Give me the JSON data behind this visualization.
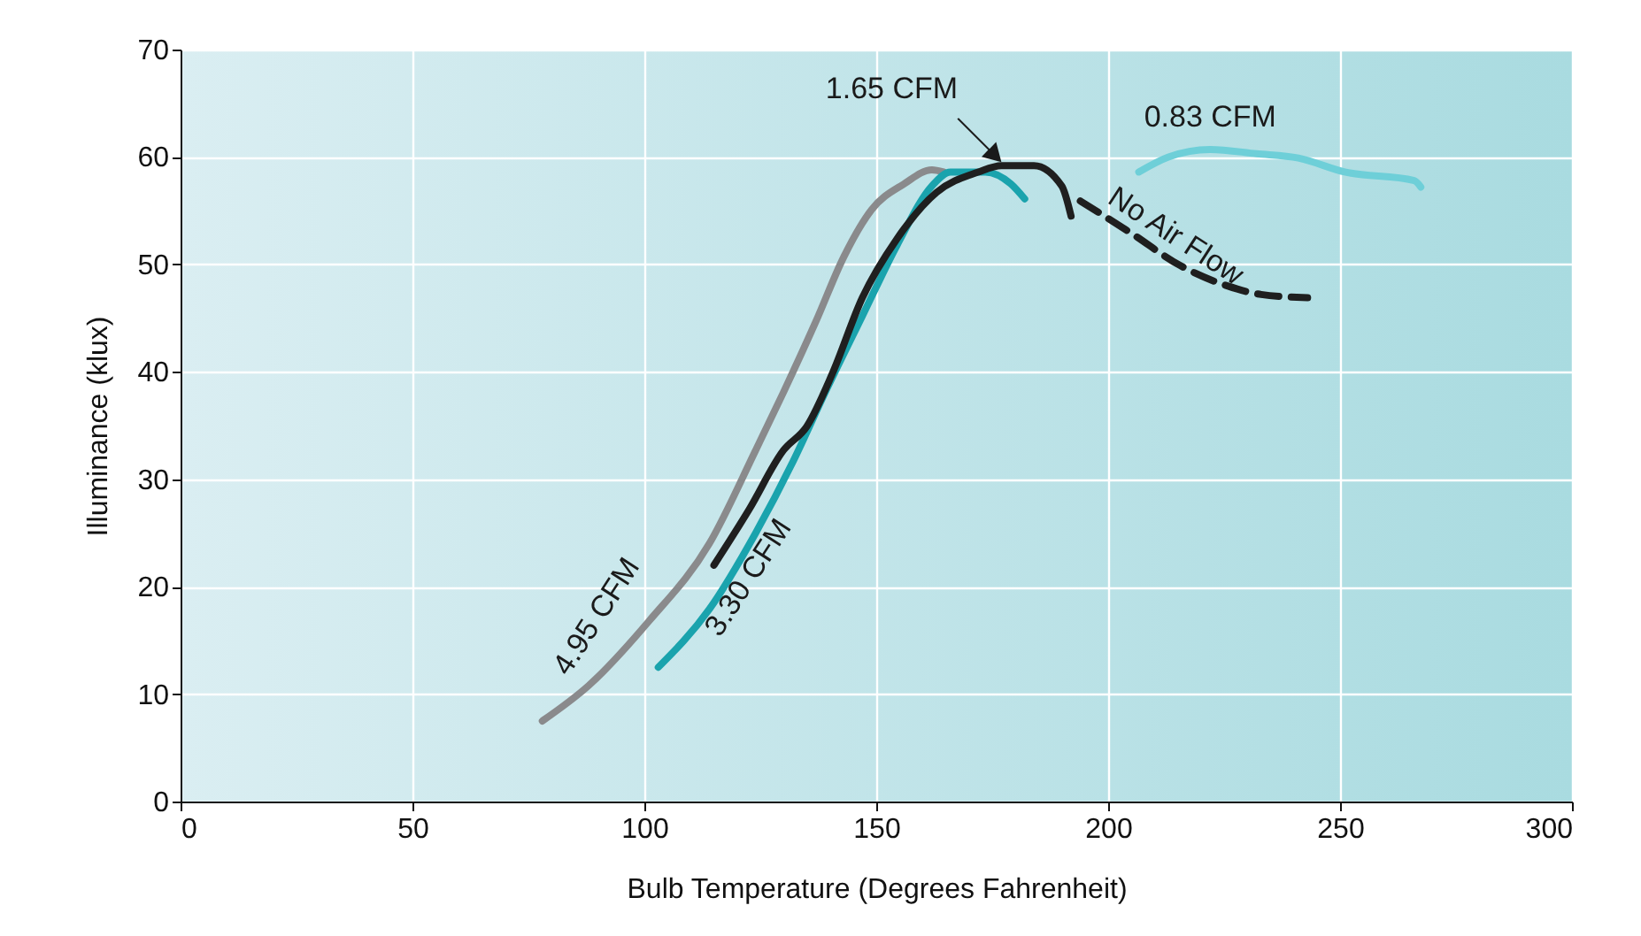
{
  "chart_data": {
    "type": "line",
    "xlabel": "Bulb Temperature (Degrees Fahrenheit)",
    "ylabel": "Illuminance (klux)",
    "xlim": [
      0,
      300
    ],
    "xticks": [
      0,
      50,
      100,
      150,
      200,
      250,
      300
    ],
    "ylim": [
      0,
      70
    ],
    "yticks": [
      0,
      10,
      20,
      30,
      40,
      50,
      60,
      70
    ],
    "grid": true,
    "marker": "none",
    "series": [
      {
        "name": "4.95 CFM",
        "color": "#8a8a8c",
        "line_style": "solid",
        "x": [
          78,
          88,
          101,
          114,
          124,
          130,
          137,
          143,
          149,
          156,
          162,
          164.5
        ],
        "values": [
          7.5,
          10.8,
          16.8,
          24,
          32.7,
          38.1,
          44.7,
          50.7,
          55.1,
          57.5,
          58.8,
          58.6
        ]
      },
      {
        "name": "3.30 CFM",
        "color": "#1aa3ad",
        "line_style": "solid",
        "x": [
          103,
          114,
          124,
          132,
          139,
          147,
          154.5,
          162,
          166,
          173.5,
          179,
          182
        ],
        "values": [
          12.5,
          17.9,
          25,
          31.6,
          38.1,
          45.2,
          51.8,
          57.3,
          58.6,
          58.6,
          57.5,
          56.1
        ]
      },
      {
        "name": "1.65 CFM",
        "color": "#1f1f1f",
        "line_style": "solid",
        "x": [
          115,
          122.6,
          130,
          135,
          140.5,
          147,
          154.5,
          163,
          172,
          177,
          184,
          190,
          192
        ],
        "values": [
          22,
          27.2,
          32.7,
          34.9,
          39.8,
          46.9,
          52.4,
          56.7,
          58.6,
          59.2,
          59.2,
          57.3,
          54.5
        ]
      },
      {
        "name": "No Air Flow",
        "color": "#1f1f1f",
        "line_style": "dashed",
        "x": [
          194,
          205,
          215.5,
          225.7,
          233,
          243
        ],
        "values": [
          55.9,
          52.9,
          49.9,
          48,
          47.2,
          46.9
        ]
      },
      {
        "name": "0.83 CFM",
        "color": "#6ecfd8",
        "line_style": "solid",
        "x": [
          206.6,
          213,
          222,
          232,
          241,
          251,
          266,
          267.4
        ],
        "values": [
          58.6,
          60,
          60.7,
          60.3,
          59.9,
          58.6,
          57.8,
          57.2
        ]
      }
    ]
  }
}
